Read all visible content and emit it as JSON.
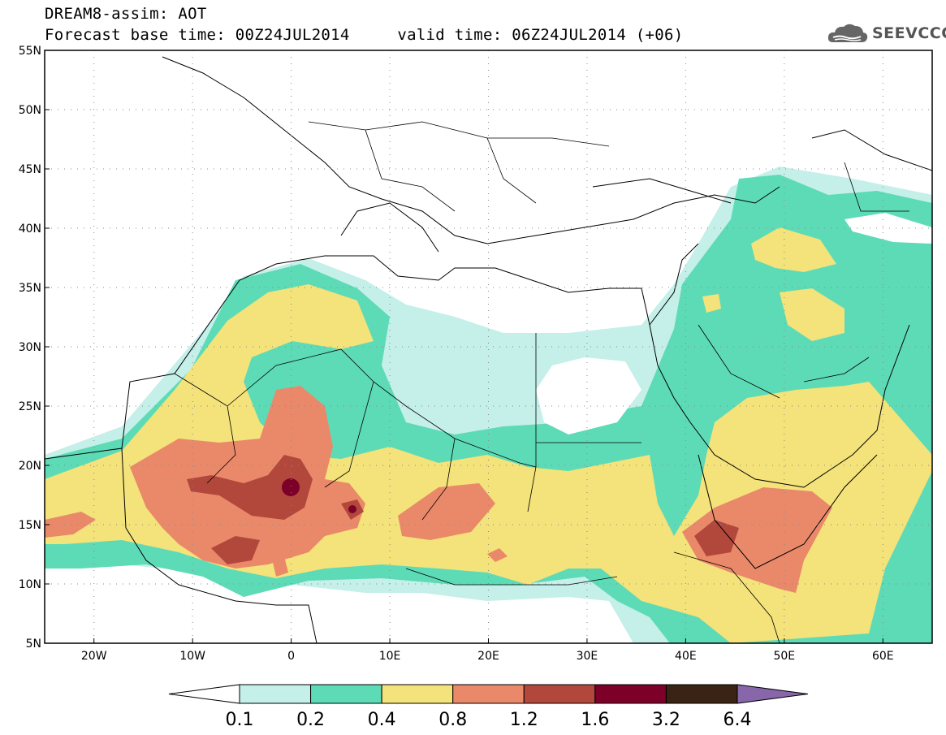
{
  "header": {
    "title_line1": "DREAM8-assim: AOT",
    "title_line2": "Forecast base time: 00Z24JUL2014     valid time: 06Z24JUL2014 (+06)",
    "logo_text": "SEEVCCC"
  },
  "map": {
    "lon_range": [
      -25,
      65
    ],
    "lat_range": [
      5,
      55
    ],
    "lat_ticks": [
      "55N",
      "50N",
      "45N",
      "40N",
      "35N",
      "30N",
      "25N",
      "20N",
      "15N",
      "10N",
      "5N"
    ],
    "lon_ticks": [
      "20W",
      "10W",
      "0",
      "10E",
      "20E",
      "30E",
      "40E",
      "50E",
      "60E"
    ],
    "grid": "dotted"
  },
  "colorbar": {
    "levels": [
      "0.1",
      "0.2",
      "0.4",
      "0.8",
      "1.2",
      "1.6",
      "3.2",
      "6.4"
    ],
    "colors": [
      "#c5efe9",
      "#5ddbb6",
      "#f4e27a",
      "#e9896a",
      "#b2483c",
      "#7d0028",
      "#3a2214",
      "#8866aa"
    ]
  }
}
